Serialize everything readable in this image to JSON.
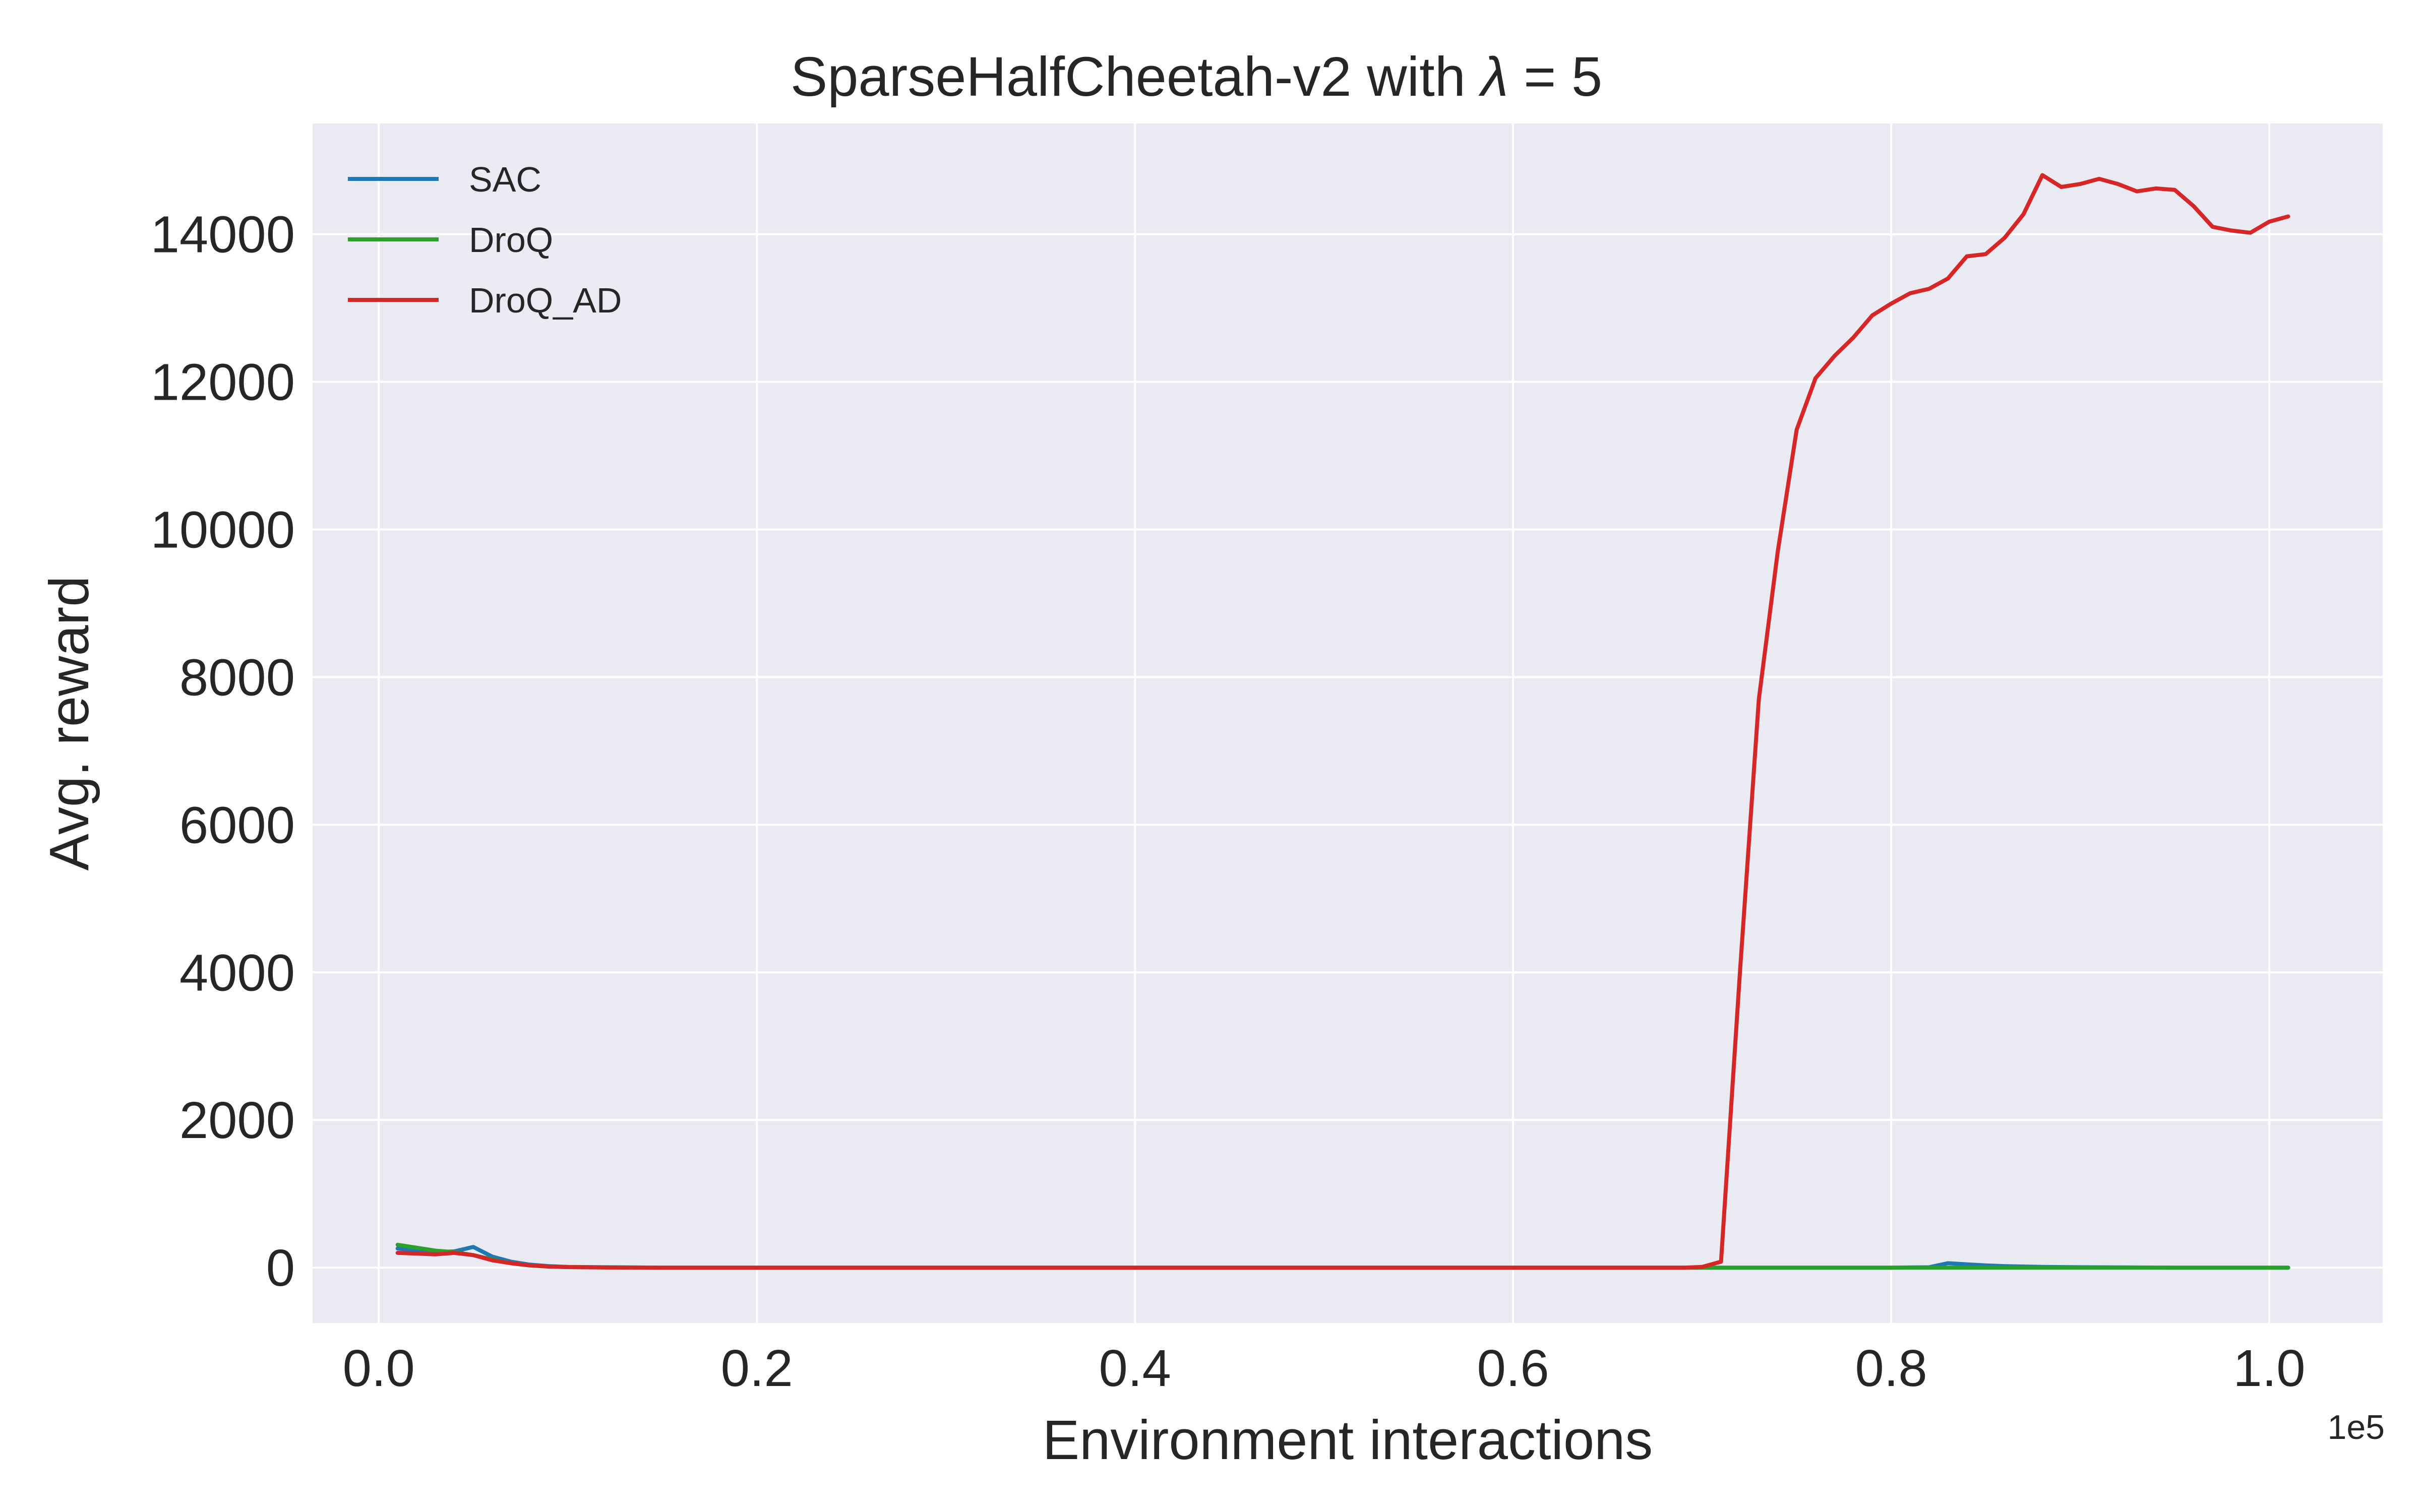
{
  "chart_data": {
    "type": "line",
    "title_main": "SparseHalfCheetah-v2 with ",
    "title_symbol": "λ",
    "title_tail": " = 5",
    "xlabel": "Environment interactions",
    "ylabel": "Avg. reward",
    "x_offset_label": "1e5",
    "x_scale": 100000,
    "xlim": [
      -0.035,
      1.06
    ],
    "ylim": [
      -750,
      15500
    ],
    "grid": true,
    "legend_position": "top-left",
    "background": "#eaeaf2",
    "x_ticks": [
      {
        "value": 0.0,
        "label": "0.0"
      },
      {
        "value": 0.2,
        "label": "0.2"
      },
      {
        "value": 0.4,
        "label": "0.4"
      },
      {
        "value": 0.6,
        "label": "0.6"
      },
      {
        "value": 0.8,
        "label": "0.8"
      },
      {
        "value": 1.0,
        "label": "1.0"
      }
    ],
    "y_ticks": [
      {
        "value": 0,
        "label": "0"
      },
      {
        "value": 2000,
        "label": "2000"
      },
      {
        "value": 4000,
        "label": "4000"
      },
      {
        "value": 6000,
        "label": "6000"
      },
      {
        "value": 8000,
        "label": "8000"
      },
      {
        "value": 10000,
        "label": "10000"
      },
      {
        "value": 12000,
        "label": "12000"
      },
      {
        "value": 14000,
        "label": "14000"
      }
    ],
    "series": [
      {
        "name": "SAC",
        "color": "#1f77b4",
        "points": [
          [
            0.01,
            260
          ],
          [
            0.02,
            230
          ],
          [
            0.03,
            210
          ],
          [
            0.04,
            220
          ],
          [
            0.05,
            280
          ],
          [
            0.06,
            150
          ],
          [
            0.07,
            80
          ],
          [
            0.08,
            40
          ],
          [
            0.09,
            20
          ],
          [
            0.1,
            10
          ],
          [
            0.12,
            5
          ],
          [
            0.15,
            0
          ],
          [
            0.3,
            0
          ],
          [
            0.5,
            0
          ],
          [
            0.7,
            0
          ],
          [
            0.8,
            0
          ],
          [
            0.82,
            5
          ],
          [
            0.83,
            60
          ],
          [
            0.84,
            45
          ],
          [
            0.85,
            30
          ],
          [
            0.86,
            20
          ],
          [
            0.88,
            10
          ],
          [
            0.9,
            5
          ],
          [
            0.95,
            0
          ],
          [
            1.01,
            0
          ]
        ]
      },
      {
        "name": "DroQ",
        "color": "#2ca02c",
        "points": [
          [
            0.01,
            310
          ],
          [
            0.02,
            270
          ],
          [
            0.03,
            230
          ],
          [
            0.04,
            210
          ],
          [
            0.05,
            170
          ],
          [
            0.06,
            110
          ],
          [
            0.07,
            60
          ],
          [
            0.08,
            30
          ],
          [
            0.09,
            15
          ],
          [
            0.1,
            8
          ],
          [
            0.12,
            3
          ],
          [
            0.15,
            0
          ],
          [
            0.3,
            0
          ],
          [
            0.5,
            0
          ],
          [
            0.7,
            0
          ],
          [
            0.9,
            0
          ],
          [
            1.01,
            0
          ]
        ]
      },
      {
        "name": "DroQ_AD",
        "color": "#d62728",
        "points": [
          [
            0.01,
            200
          ],
          [
            0.02,
            190
          ],
          [
            0.03,
            180
          ],
          [
            0.04,
            200
          ],
          [
            0.05,
            170
          ],
          [
            0.06,
            100
          ],
          [
            0.07,
            60
          ],
          [
            0.08,
            30
          ],
          [
            0.09,
            15
          ],
          [
            0.1,
            8
          ],
          [
            0.12,
            2
          ],
          [
            0.15,
            0
          ],
          [
            0.3,
            0
          ],
          [
            0.5,
            0
          ],
          [
            0.69,
            0
          ],
          [
            0.7,
            10
          ],
          [
            0.71,
            80
          ],
          [
            0.72,
            4000
          ],
          [
            0.73,
            7700
          ],
          [
            0.74,
            9700
          ],
          [
            0.75,
            11350
          ],
          [
            0.76,
            12050
          ],
          [
            0.77,
            12350
          ],
          [
            0.78,
            12600
          ],
          [
            0.79,
            12900
          ],
          [
            0.8,
            13060
          ],
          [
            0.81,
            13200
          ],
          [
            0.82,
            13260
          ],
          [
            0.83,
            13400
          ],
          [
            0.84,
            13700
          ],
          [
            0.85,
            13730
          ],
          [
            0.86,
            13950
          ],
          [
            0.87,
            14270
          ],
          [
            0.88,
            14800
          ],
          [
            0.89,
            14640
          ],
          [
            0.9,
            14680
          ],
          [
            0.91,
            14750
          ],
          [
            0.92,
            14680
          ],
          [
            0.93,
            14580
          ],
          [
            0.94,
            14620
          ],
          [
            0.95,
            14600
          ],
          [
            0.96,
            14380
          ],
          [
            0.97,
            14100
          ],
          [
            0.98,
            14050
          ],
          [
            0.99,
            14020
          ],
          [
            1.0,
            14170
          ],
          [
            1.01,
            14240
          ]
        ]
      }
    ]
  }
}
